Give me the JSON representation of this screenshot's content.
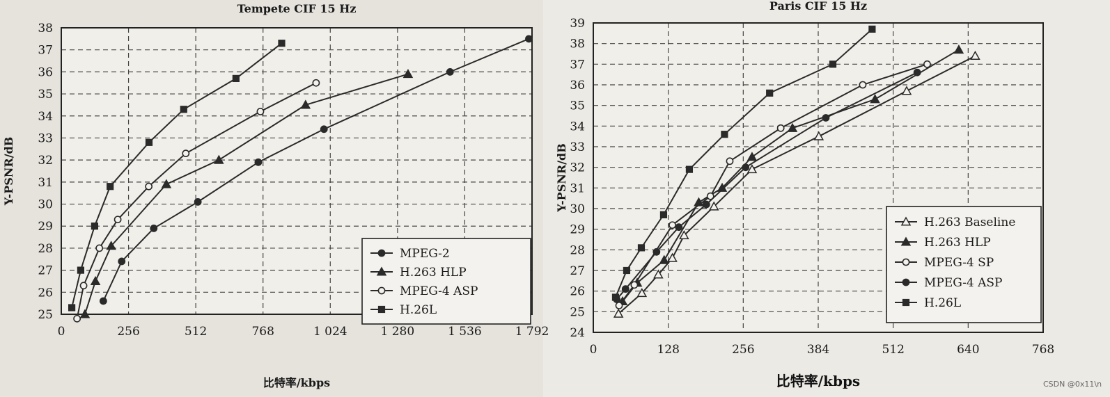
{
  "watermark": "CSDN @0x11\\n",
  "chart_data": [
    {
      "type": "line",
      "title": "Tempete CIF 15 Hz",
      "xlabel": "比特率/kbps",
      "ylabel": "Y-PSNR/dB",
      "xlim": [
        0,
        1792
      ],
      "ylim": [
        25,
        38
      ],
      "xticks": [
        0,
        256,
        512,
        768,
        1024,
        1280,
        1536,
        1792
      ],
      "xtick_labels": [
        "0",
        "256",
        "512",
        "768",
        "1 024",
        "1 280",
        "1 536",
        "1 792"
      ],
      "yticks": [
        25,
        26,
        27,
        28,
        29,
        30,
        31,
        32,
        33,
        34,
        35,
        36,
        37,
        38
      ],
      "grid": true,
      "legend_position": "bottom-right",
      "series": [
        {
          "name": "MPEG-2",
          "marker": "filled-circle",
          "x": [
            160,
            230,
            352,
            520,
            750,
            1000,
            1480,
            1780
          ],
          "y": [
            25.6,
            27.4,
            28.9,
            30.1,
            31.9,
            33.4,
            36.0,
            37.5
          ]
        },
        {
          "name": "H.263 HLP",
          "marker": "filled-triangle",
          "x": [
            90,
            130,
            190,
            400,
            600,
            930,
            1320
          ],
          "y": [
            25.0,
            26.5,
            28.1,
            30.9,
            32.0,
            34.5,
            35.9
          ]
        },
        {
          "name": "MPEG-4 ASP",
          "marker": "open-circle",
          "x": [
            60,
            85,
            145,
            215,
            333,
            474,
            758,
            970
          ],
          "y": [
            24.8,
            26.3,
            28.0,
            29.3,
            30.8,
            32.3,
            34.2,
            35.5
          ]
        },
        {
          "name": "H.26L",
          "marker": "filled-square",
          "x": [
            40,
            74,
            127,
            186,
            334,
            466,
            665,
            839
          ],
          "y": [
            25.3,
            27.0,
            29.0,
            30.8,
            32.8,
            34.3,
            35.7,
            37.3
          ]
        }
      ]
    },
    {
      "type": "line",
      "title": "Paris CIF 15 Hz",
      "xlabel": "比特率/kbps",
      "ylabel": "Y-PSNR/dB",
      "xlim": [
        0,
        768
      ],
      "ylim": [
        24,
        39
      ],
      "xticks": [
        0,
        128,
        256,
        384,
        512,
        640,
        768
      ],
      "xtick_labels": [
        "0",
        "128",
        "256",
        "384",
        "512",
        "640",
        "768"
      ],
      "yticks": [
        24,
        25,
        26,
        27,
        28,
        29,
        30,
        31,
        32,
        33,
        34,
        35,
        36,
        37,
        38,
        39
      ],
      "grid": true,
      "legend_position": "bottom-right",
      "series": [
        {
          "name": "H.263 Baseline",
          "marker": "open-triangle",
          "x": [
            43,
            83,
            111,
            135,
            155,
            206,
            271,
            385,
            535,
            652
          ],
          "y": [
            24.9,
            25.9,
            26.8,
            27.6,
            28.7,
            30.1,
            31.9,
            33.5,
            35.7,
            37.4
          ]
        },
        {
          "name": "H.263 HLP",
          "marker": "filled-triangle",
          "x": [
            50,
            75,
            121,
            180,
            220,
            271,
            340,
            481,
            624
          ],
          "y": [
            25.5,
            26.4,
            27.5,
            30.3,
            31.0,
            32.5,
            33.9,
            35.3,
            37.7
          ]
        },
        {
          "name": "MPEG-4 SP",
          "marker": "open-circle",
          "x": [
            44,
            70,
            135,
            200,
            233,
            320,
            460,
            570
          ],
          "y": [
            25.3,
            26.3,
            29.2,
            30.6,
            32.3,
            33.9,
            36.0,
            37.0
          ]
        },
        {
          "name": "MPEG-4 ASP",
          "marker": "filled-circle",
          "x": [
            40,
            55,
            108,
            146,
            193,
            260,
            397,
            553
          ],
          "y": [
            25.6,
            26.1,
            27.9,
            29.1,
            30.2,
            32.0,
            34.4,
            36.6
          ]
        },
        {
          "name": "H.26L",
          "marker": "filled-square",
          "x": [
            38,
            57,
            82,
            120,
            164,
            224,
            301,
            409,
            476
          ],
          "y": [
            25.7,
            27.0,
            28.1,
            29.7,
            31.9,
            33.6,
            35.6,
            37.0,
            38.7
          ]
        }
      ]
    }
  ]
}
